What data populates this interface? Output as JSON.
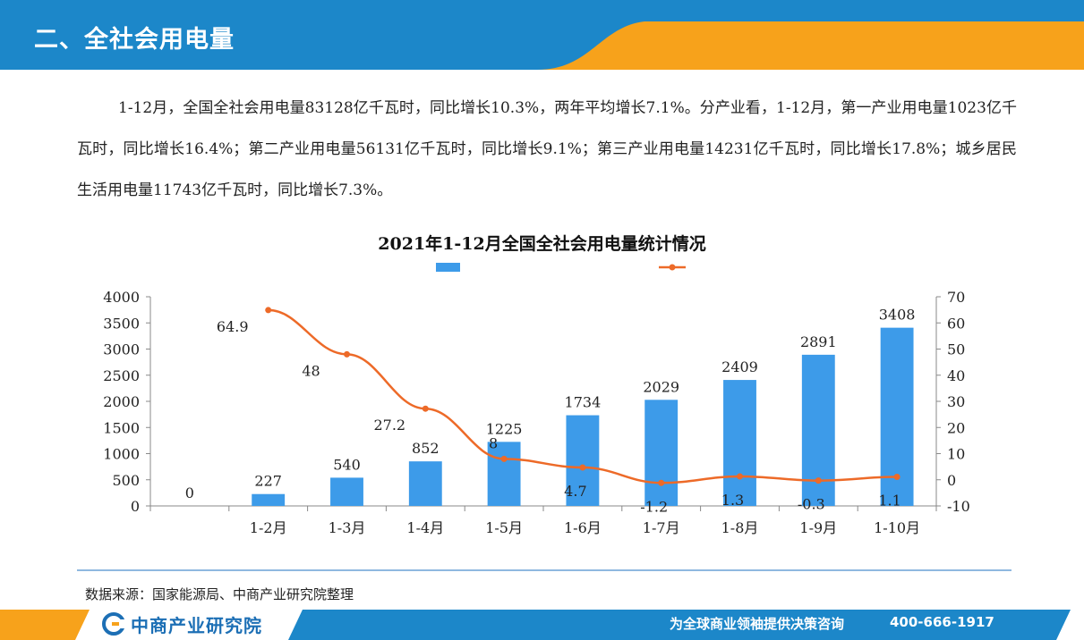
{
  "header": {
    "title": "二、全社会用电量"
  },
  "paragraph": "1-12月，全国全社会用电量83128亿千瓦时，同比增长10.3%，两年平均增长7.1%。分产业看，1-12月，第一产业用电量1023亿千瓦时，同比增长16.4%；第二产业用电量56131亿千瓦时，同比增长9.1%；第三产业用电量14231亿千瓦时，同比增长17.8%；城乡居民生活用电量11743亿千瓦时，同比增长7.3%。",
  "chart_data": {
    "type": "bar",
    "title": "2021年1-12月全国全社会用电量统计情况",
    "categories": [
      "",
      "1-2月",
      "1-3月",
      "1-4月",
      "1-5月",
      "1-6月",
      "1-7月",
      "1-8月",
      "1-9月",
      "1-10月"
    ],
    "series": [
      {
        "type": "bar",
        "axis": "left",
        "color": "#3d9be9",
        "values": [
          0,
          227,
          540,
          852,
          1225,
          1734,
          2029,
          2409,
          2891,
          3408
        ],
        "labels": [
          "0",
          "227",
          "540",
          "852",
          "1225",
          "1734",
          "2029",
          "2409",
          "2891",
          "3408"
        ]
      },
      {
        "type": "line",
        "axis": "right",
        "color": "#ed6a28",
        "values": [
          null,
          64.9,
          48,
          27.2,
          8,
          4.7,
          -1.2,
          1.3,
          -0.3,
          1.1
        ],
        "labels": [
          "",
          "64.9",
          "48",
          "27.2",
          "8",
          "4.7",
          "-1.2",
          "1.3",
          "-0.3",
          "1.1"
        ]
      }
    ],
    "y_left": {
      "min": 0,
      "max": 4000,
      "ticks": [
        "0",
        "500",
        "1000",
        "1500",
        "2000",
        "2500",
        "3000",
        "3500",
        "4000"
      ]
    },
    "y_right": {
      "min": -10,
      "max": 70,
      "ticks": [
        "-10",
        "0",
        "10",
        "20",
        "30",
        "40",
        "50",
        "60",
        "70"
      ]
    },
    "legend": "top-center",
    "grid": false
  },
  "source": "数据来源：国家能源局、中商产业研究院整理",
  "footer": {
    "logo_text": "中商产业研究院",
    "slogan": "为全球商业领袖提供决策咨询",
    "phone": "400-666-1917"
  },
  "colors": {
    "header_blue": "#1c87c9",
    "accent_orange": "#f7a21b",
    "bar_blue": "#3d9be9",
    "line_orange": "#ed6a28"
  }
}
